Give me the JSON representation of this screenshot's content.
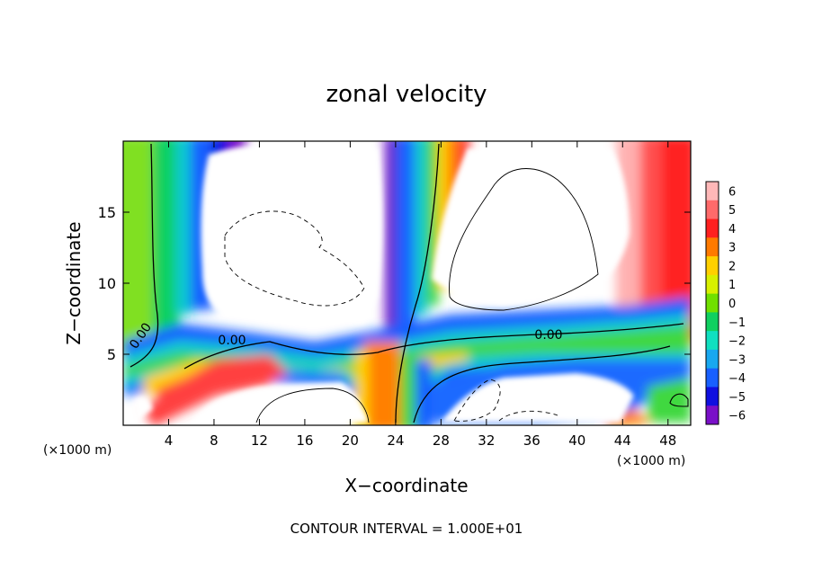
{
  "chart_data": {
    "type": "heatmap",
    "title": "zonal velocity",
    "xlabel": "X−coordinate",
    "ylabel": "Z−coordinate",
    "x_unit_left": "(×1000 m)",
    "x_unit_right": "(×1000 m)",
    "footer": "CONTOUR INTERVAL = 1.000E+01",
    "xlim": [
      0,
      50
    ],
    "ylim": [
      0,
      20
    ],
    "x_ticks": [
      4,
      8,
      12,
      16,
      20,
      24,
      28,
      32,
      36,
      40,
      44,
      48
    ],
    "x_tick_labels": [
      "4",
      "8",
      "12",
      "16",
      "20",
      "24",
      "28",
      "32",
      "36",
      "40",
      "44",
      "48"
    ],
    "y_ticks": [
      5,
      10,
      15
    ],
    "y_tick_labels": [
      "5",
      "10",
      "15"
    ],
    "contour_label": "0.00",
    "colorbar": {
      "levels": [
        6,
        5,
        4,
        3,
        2,
        1,
        0,
        -1,
        -2,
        -3,
        -4,
        -5,
        -6
      ],
      "labels": [
        "6",
        "5",
        "4",
        "3",
        "2",
        "1",
        "0",
        "−1",
        "−2",
        "−3",
        "−4",
        "−5",
        "−6"
      ],
      "colors": [
        "#ffb8b8",
        "#ff6a6a",
        "#ff2020",
        "#ff7a00",
        "#ffd000",
        "#d8f000",
        "#70e000",
        "#10d060",
        "#10e0c0",
        "#18a8f0",
        "#1860ff",
        "#1010e0",
        "#7a10c8"
      ]
    }
  }
}
